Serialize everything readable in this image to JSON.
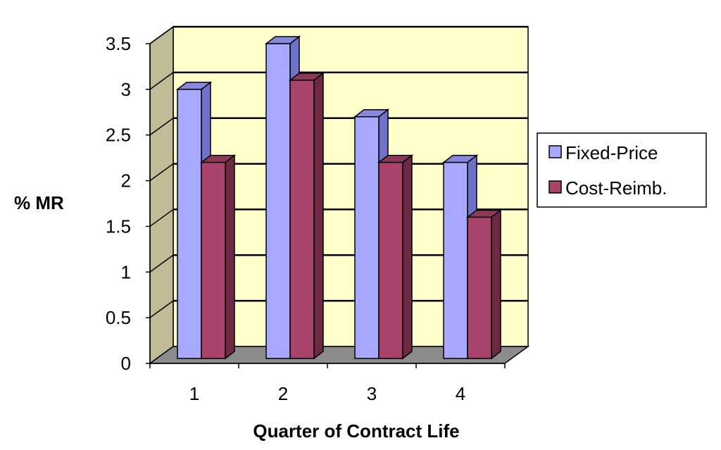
{
  "chart_data": {
    "type": "bar",
    "categories": [
      "1",
      "2",
      "3",
      "4"
    ],
    "series": [
      {
        "name": "Fixed-Price",
        "values": [
          3.0,
          3.5,
          2.7,
          2.2
        ]
      },
      {
        "name": "Cost-Reimb.",
        "values": [
          2.2,
          3.1,
          2.2,
          1.6
        ]
      }
    ],
    "xlabel": "Quarter of Contract Life",
    "ylabel": "% MR",
    "ylim": [
      0,
      3.5
    ],
    "yticks": [
      "0",
      "0.5",
      "1",
      "1.5",
      "2",
      "2.5",
      "3",
      "3.5"
    ],
    "grid": true,
    "legend_position": "right",
    "style": "3d"
  },
  "colors": {
    "wall": "#ffffcc",
    "side_wall": "#c0bc98",
    "floor": "#8c8c8c",
    "fixed_front": "#a8a8ff",
    "fixed_side": "#6f72c8",
    "fixed_top": "#8888e0",
    "cost_front": "#a8446c",
    "cost_side": "#6e2a45",
    "cost_top": "#8c3858"
  }
}
